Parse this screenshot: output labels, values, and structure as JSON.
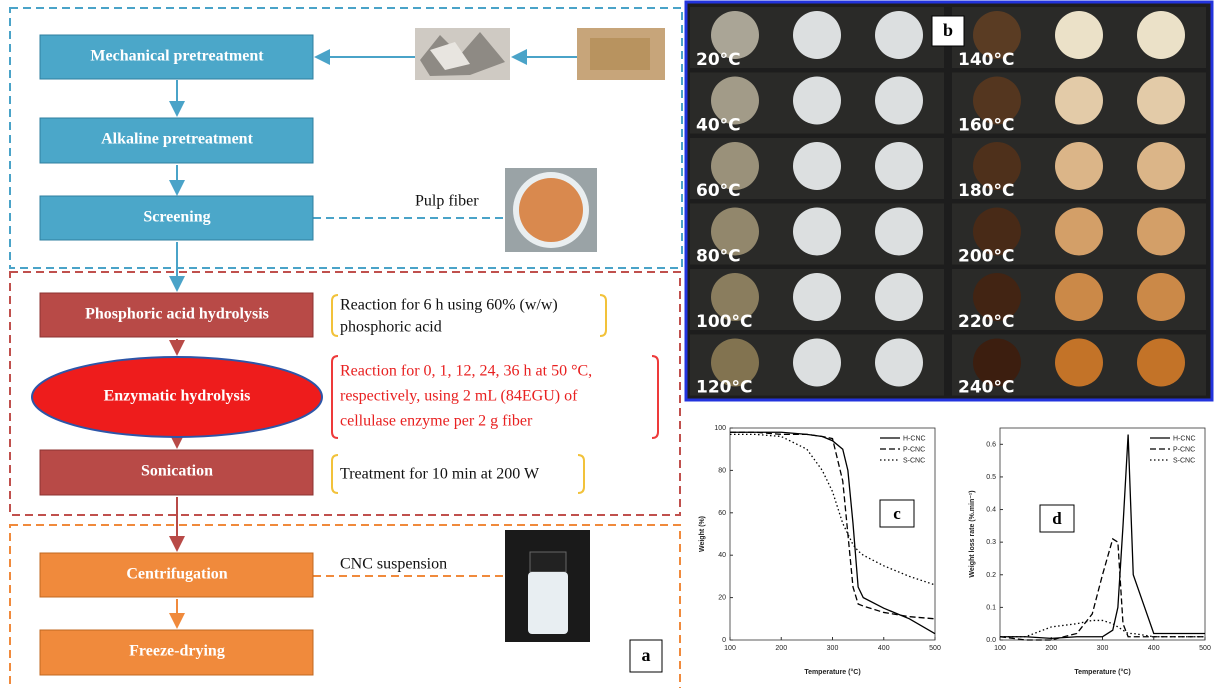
{
  "diagram": {
    "label": "a",
    "steps": [
      "Mechanical pretreatment",
      "Alkaline pretreatment",
      "Screening",
      "Phosphoric acid hydrolysis",
      "Enzymatic hydrolysis",
      "Sonication",
      "Centrifugation",
      "Freeze-drying"
    ],
    "pulp_note": "Pulp fiber",
    "cnc_note": "CNC suspension",
    "phosphoric_note": [
      "Reaction for 6 h using 60% (w/w)",
      "phosphoric acid"
    ],
    "enzymatic_note": [
      "Reaction for 0, 1, 12, 24, 36 h at 50 °C,",
      "respectively, using 2 mL (84EGU) of",
      "cellulase enzyme per 2 g fiber"
    ],
    "sonication_note": "Treatment for 10 min at 200 W"
  },
  "photos": {
    "label": "b",
    "temperatures": [
      "20°C",
      "40°C",
      "60°C",
      "80°C",
      "100°C",
      "120°C",
      "140°C",
      "160°C",
      "180°C",
      "200°C",
      "220°C",
      "240°C"
    ]
  },
  "chart_data": [
    {
      "type": "line",
      "label": "c",
      "xlabel": "Temperature (°C)",
      "ylabel": "Weight (%)",
      "xlim": [
        100,
        500
      ],
      "xticks": [
        100,
        200,
        300,
        400,
        500
      ],
      "ylim": [
        0,
        100
      ],
      "yticks": [
        0,
        20,
        40,
        60,
        80,
        100
      ],
      "legend": "upper right",
      "x": [
        100,
        150,
        200,
        250,
        280,
        300,
        320,
        330,
        340,
        350,
        360,
        400,
        450,
        500
      ],
      "series": [
        {
          "name": "H-CNC",
          "color": "#000000",
          "dash": "solid",
          "values": [
            98,
            98,
            98,
            97,
            96,
            94,
            90,
            80,
            55,
            25,
            20,
            15,
            10,
            3
          ]
        },
        {
          "name": "P-CNC",
          "color": "#000000",
          "dash": "dashed",
          "values": [
            98,
            98,
            97,
            97,
            96,
            95,
            75,
            50,
            25,
            17,
            16,
            13,
            11,
            10
          ]
        },
        {
          "name": "S-CNC",
          "color": "#000000",
          "dash": "dotted",
          "values": [
            97,
            97,
            96,
            90,
            80,
            70,
            55,
            50,
            45,
            42,
            40,
            35,
            30,
            26
          ]
        }
      ]
    },
    {
      "type": "line",
      "label": "d",
      "xlabel": "Temperature (°C)",
      "ylabel": "Weight loss rate (%.min⁻¹)",
      "xlim": [
        100,
        500
      ],
      "xticks": [
        100,
        200,
        300,
        400,
        500
      ],
      "ylim": [
        0,
        0.65
      ],
      "yticks": [
        {
          "value": 0,
          "label": "0.0"
        },
        0.1,
        0.2,
        0.3,
        0.4,
        0.5,
        0.6
      ],
      "legend": "upper right",
      "x": [
        100,
        150,
        200,
        250,
        280,
        300,
        320,
        330,
        340,
        350,
        360,
        400,
        450,
        500
      ],
      "series": [
        {
          "name": "H-CNC",
          "color": "#000000",
          "dash": "solid",
          "values": [
            0.01,
            0.01,
            0.005,
            0.01,
            0.01,
            0.01,
            0.03,
            0.1,
            0.35,
            0.63,
            0.2,
            0.02,
            0.02,
            0.02
          ]
        },
        {
          "name": "P-CNC",
          "color": "#000000",
          "dash": "dashed",
          "values": [
            0.01,
            0,
            0,
            0.02,
            0.08,
            0.2,
            0.31,
            0.3,
            0.05,
            0.01,
            0.01,
            0.01,
            0.01,
            0.01
          ]
        },
        {
          "name": "S-CNC",
          "color": "#000000",
          "dash": "dotted",
          "values": [
            0.01,
            0.01,
            0.04,
            0.05,
            0.06,
            0.06,
            0.05,
            0.04,
            0.03,
            0.02,
            0.02,
            0.01,
            0.01,
            0.01
          ]
        }
      ]
    }
  ]
}
